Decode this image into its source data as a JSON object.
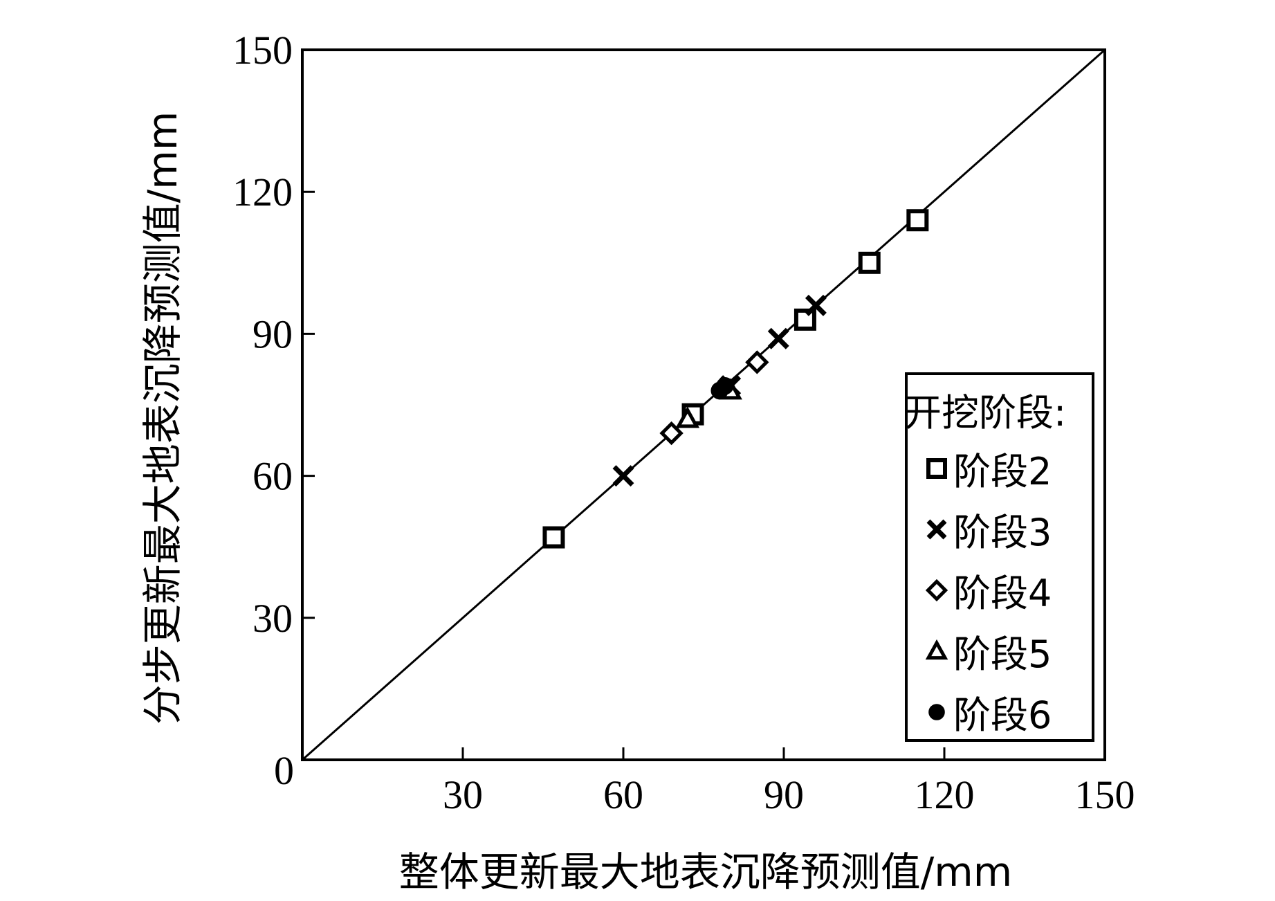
{
  "chart_data": {
    "type": "scatter",
    "title": "",
    "xlabel": "整体更新最大地表沉降预测值/mm",
    "ylabel": "分步更新最大地表沉降预测值/mm",
    "xlim": [
      0,
      150
    ],
    "ylim": [
      0,
      150
    ],
    "x_ticks": [
      "0",
      "30",
      "60",
      "90",
      "120",
      "150"
    ],
    "y_ticks": [
      "0",
      "30",
      "60",
      "90",
      "120",
      "150"
    ],
    "grid": false,
    "reference_line": {
      "type": "y=x",
      "from": [
        0,
        0
      ],
      "to": [
        150,
        150
      ]
    },
    "legend": {
      "title": "开挖阶段:",
      "position": "bottom-right",
      "entries": [
        "阶段2",
        "阶段3",
        "阶段4",
        "阶段5",
        "阶段6"
      ]
    },
    "series": [
      {
        "name": "阶段2",
        "marker": "square",
        "points": [
          [
            47,
            47
          ],
          [
            73,
            73
          ],
          [
            94,
            93
          ],
          [
            106,
            105
          ],
          [
            115,
            114
          ]
        ]
      },
      {
        "name": "阶段3",
        "marker": "x",
        "points": [
          [
            60,
            60
          ],
          [
            80,
            79
          ],
          [
            89,
            89
          ],
          [
            96,
            96
          ]
        ]
      },
      {
        "name": "阶段4",
        "marker": "diamond",
        "points": [
          [
            69,
            69
          ],
          [
            85,
            84
          ]
        ]
      },
      {
        "name": "阶段5",
        "marker": "triangle",
        "points": [
          [
            72,
            72
          ],
          [
            80,
            78
          ]
        ]
      },
      {
        "name": "阶段6",
        "marker": "circle",
        "points": [
          [
            78,
            78
          ],
          [
            79,
            79
          ]
        ]
      }
    ]
  }
}
